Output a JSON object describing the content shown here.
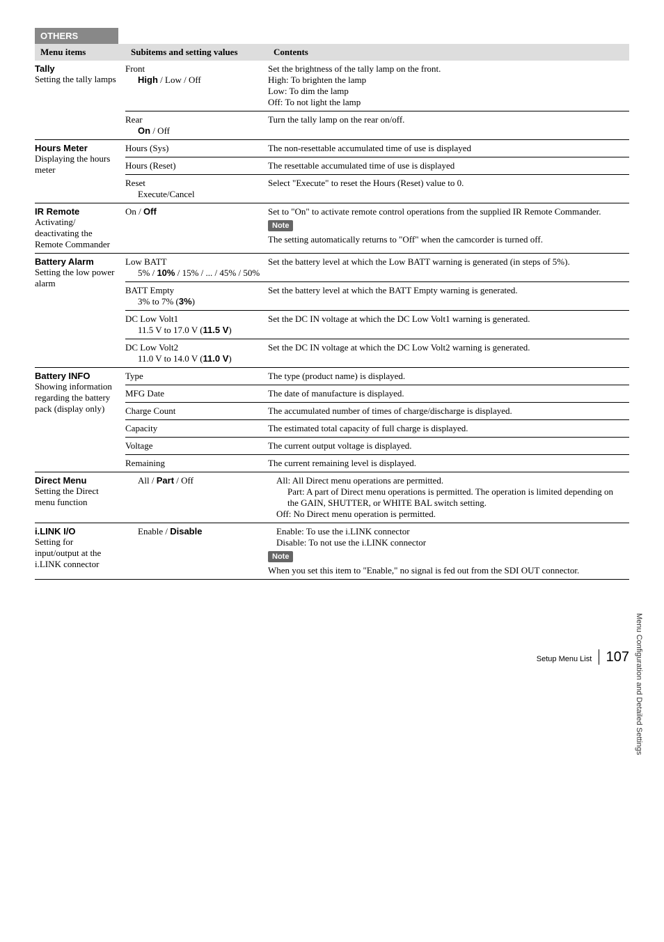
{
  "section_header": "OTHERS",
  "headers": {
    "c1": "Menu items",
    "c2": "Subitems and setting values",
    "c3": "Contents"
  },
  "rows": [
    {
      "title": "Tally",
      "desc": "Setting the tally lamps",
      "subs": [
        {
          "c2_lines": [
            "Front",
            "  <b class='sans'>High</b> / Low / Off"
          ],
          "c3_lines": [
            "Set the brightness of the tally lamp on the front.",
            "High: To brighten the lamp",
            "Low: To dim the lamp",
            "Off: To not light the lamp"
          ]
        },
        {
          "c2_lines": [
            "Rear",
            "  <b class='sans'>On</b> / Off"
          ],
          "c3_lines": [
            "Turn the tally lamp on the rear on/off."
          ]
        }
      ]
    },
    {
      "title": "Hours Meter",
      "desc": "Displaying the hours meter",
      "subs": [
        {
          "c2_lines": [
            "Hours (Sys)"
          ],
          "c3_lines": [
            "The non-resettable accumulated time of use is displayed"
          ]
        },
        {
          "c2_lines": [
            "Hours (Reset)"
          ],
          "c3_lines": [
            "The resettable accumulated time of use is displayed"
          ]
        },
        {
          "c2_lines": [
            "Reset",
            "  Execute/Cancel"
          ],
          "c3_lines": [
            "Select \"Execute\" to reset the Hours (Reset) value to 0."
          ]
        }
      ]
    },
    {
      "title": "IR Remote",
      "desc": "Activating/ deactivating the Remote Commander",
      "subs": [
        {
          "c2_lines": [
            "On / <b class='sans'>Off</b>"
          ],
          "c3_lines": [
            "Set to \"On\" to activate remote control operations from the supplied IR Remote Commander.",
            "NOTE",
            "The setting automatically returns to \"Off\" when the camcorder is turned off."
          ]
        }
      ]
    },
    {
      "title": "Battery Alarm",
      "desc": "Setting the low power alarm",
      "subs": [
        {
          "c2_lines": [
            "Low BATT",
            "  5% / <b class='sans'>10%</b> / 15% / ... / 45% / 50%"
          ],
          "c3_lines": [
            "Set the battery level at which the Low BATT warning is generated (in steps of 5%)."
          ]
        },
        {
          "c2_lines": [
            "BATT Empty",
            "  3%  to 7% (<b class='sans'>3%</b>)"
          ],
          "c3_lines": [
            "Set the battery level at which the BATT Empty warning is generated."
          ]
        },
        {
          "c2_lines": [
            "DC Low Volt1",
            "  11.5 V  to  17.0 V (<b class='sans'>11.5 V</b>)"
          ],
          "c3_lines": [
            "Set the DC IN voltage at which the DC Low Volt1 warning is generated."
          ]
        },
        {
          "c2_lines": [
            "DC Low Volt2",
            "  11.0 V  to  14.0 V (<b class='sans'>11.0 V</b>)"
          ],
          "c3_lines": [
            "Set the DC IN voltage at which the DC Low Volt2 warning is generated."
          ]
        }
      ]
    },
    {
      "title": "Battery INFO",
      "desc": "Showing information regarding the battery pack  (display only)",
      "subs": [
        {
          "c2_lines": [
            "Type"
          ],
          "c3_lines": [
            "The type (product name) is displayed."
          ]
        },
        {
          "c2_lines": [
            "MFG Date"
          ],
          "c3_lines": [
            "The date of manufacture is displayed."
          ]
        },
        {
          "c2_lines": [
            "Charge Count"
          ],
          "c3_lines": [
            "The accumulated number of times of charge/discharge is displayed."
          ]
        },
        {
          "c2_lines": [
            "Capacity"
          ],
          "c3_lines": [
            "The estimated total capacity of full charge is displayed."
          ]
        },
        {
          "c2_lines": [
            "Voltage"
          ],
          "c3_lines": [
            "The current output voltage is displayed."
          ]
        },
        {
          "c2_lines": [
            "Remaining"
          ],
          "c3_lines": [
            "The current remaining level is displayed."
          ]
        }
      ]
    },
    {
      "title": "Direct Menu",
      "desc": "Setting the Direct menu function",
      "subs": [
        {
          "c2_lines": [
            "  All / <b class='sans'>Part</b> / Off"
          ],
          "c3_lines": [
            "  All: All Direct menu operations are permitted.",
            "  Part: A part of Direct menu operations is permitted. The operation is limited depending on the GAIN, SHUTTER, or WHITE BAL switch setting.",
            "  Off: No Direct menu operation is permitted."
          ]
        }
      ]
    },
    {
      "title": "i.LINK I/O",
      "desc": "Setting for input/output at the i.LINK connector",
      "subs": [
        {
          "c2_lines": [
            "  Enable / <b class='sans'>Disable</b>"
          ],
          "c3_lines": [
            "  Enable: To use the i.LINK connector",
            "  Disable: To not use the i.LINK connector",
            "NOTE",
            "When you set this item to \"Enable,\" no signal is fed out from the SDI OUT connector."
          ]
        }
      ]
    }
  ],
  "side_label": "Menu Configuration and Detailed Settings",
  "footer": {
    "title": "Setup Menu List",
    "page": "107"
  }
}
